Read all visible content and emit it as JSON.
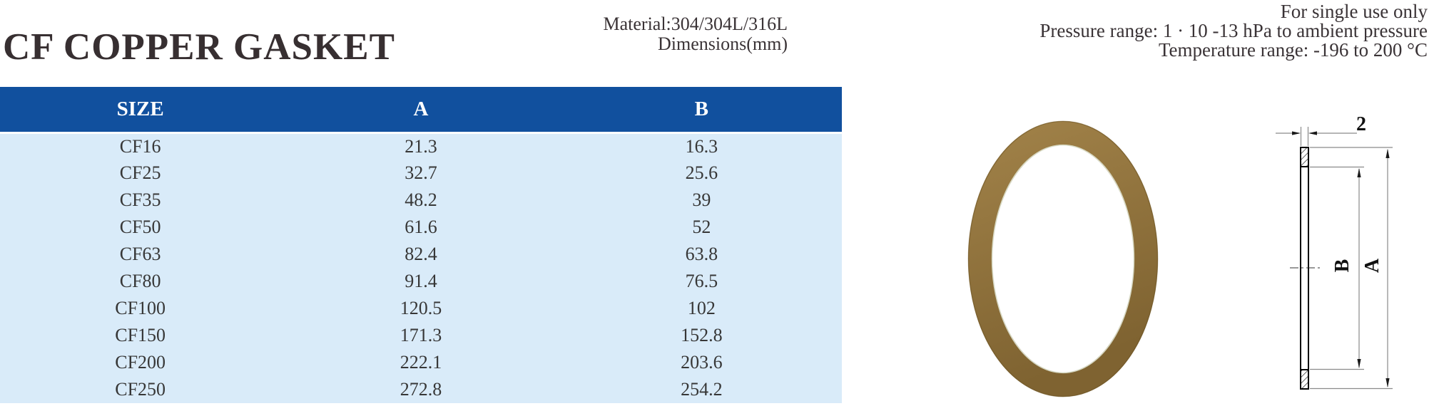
{
  "page": {
    "title": "CF COPPER GASKET"
  },
  "info_center": {
    "material": "Material:304/304L/316L",
    "dimensions": "Dimensions(mm)"
  },
  "info_right": {
    "line1": "For single use only",
    "line2": "Pressure range: 1 · 10 -13 hPa to ambient pressure",
    "line3": "Temperature range: -196 to 200 °C"
  },
  "table": {
    "headers": [
      "SIZE",
      "A",
      "B"
    ],
    "rows": [
      [
        "CF16",
        "21.3",
        "16.3"
      ],
      [
        "CF25",
        "32.7",
        "25.6"
      ],
      [
        "CF35",
        "48.2",
        "39"
      ],
      [
        "CF50",
        "61.6",
        "52"
      ],
      [
        "CF63",
        "82.4",
        "63.8"
      ],
      [
        "CF80",
        "91.4",
        "76.5"
      ],
      [
        "CF100",
        "120.5",
        "102"
      ],
      [
        "CF150",
        "171.3",
        "152.8"
      ],
      [
        "CF200",
        "222.1",
        "203.6"
      ],
      [
        "CF250",
        "272.8",
        "254.2"
      ]
    ]
  },
  "drawing": {
    "thickness_label": "2",
    "inner_diameter_label": "B",
    "outer_diameter_label": "A"
  },
  "colors": {
    "header_blue": "#11509e",
    "row_blue": "#d9ebf9",
    "text_dark": "#3a3336",
    "copper": "#8f7140",
    "copper_light": "#a08148",
    "copper_dark": "#7f6331"
  }
}
